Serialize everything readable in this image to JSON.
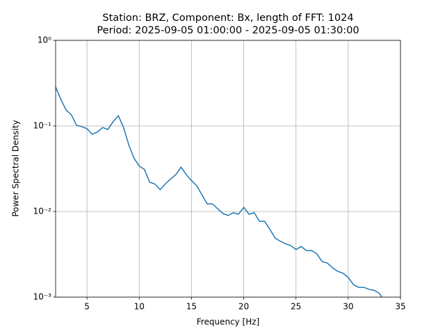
{
  "chart_data": {
    "type": "line",
    "title": [
      "Station: BRZ, Component: Bx, length of FFT: 1024",
      "Period: 2025-09-05 01:00:00 - 2025-09-05 01:30:00"
    ],
    "xlabel": "Frequency [Hz]",
    "ylabel": "Power Spectral Density",
    "x": [
      2,
      2.5,
      3,
      3.5,
      4,
      4.5,
      5,
      5.5,
      6,
      6.5,
      7,
      7.5,
      8,
      8.5,
      9,
      9.5,
      10,
      10.5,
      11,
      11.5,
      12,
      12.5,
      13,
      13.5,
      14,
      14.5,
      15,
      15.5,
      16,
      16.5,
      17,
      17.5,
      18,
      18.5,
      19,
      19.5,
      20,
      20.5,
      21,
      21.5,
      22,
      22.5,
      23,
      23.5,
      24,
      24.5,
      25,
      25.5,
      26,
      26.5,
      27,
      27.5,
      28,
      28.5,
      29,
      29.5,
      30,
      30.5,
      31,
      31.5,
      32,
      32.5,
      33,
      33.2
    ],
    "values": [
      0.285,
      0.204,
      0.154,
      0.135,
      0.102,
      0.098,
      0.093,
      0.08,
      0.085,
      0.096,
      0.091,
      0.112,
      0.132,
      0.096,
      0.06,
      0.042,
      0.034,
      0.031,
      0.022,
      0.021,
      0.018,
      0.021,
      0.024,
      0.027,
      0.033,
      0.027,
      0.023,
      0.02,
      0.0157,
      0.0123,
      0.0123,
      0.0108,
      0.0095,
      0.009,
      0.0097,
      0.0093,
      0.0112,
      0.0093,
      0.0097,
      0.0077,
      0.0077,
      0.0062,
      0.0049,
      0.0045,
      0.0042,
      0.004,
      0.0036,
      0.0039,
      0.0035,
      0.0035,
      0.0032,
      0.0026,
      0.0025,
      0.0022,
      0.002,
      0.0019,
      0.0017,
      0.0014,
      0.0013,
      0.0013,
      0.00123,
      0.0012,
      0.0011,
      0.001
    ],
    "color": "#1f77b4",
    "xlim": [
      2,
      35
    ],
    "xticks": [
      5,
      10,
      15,
      20,
      25,
      30,
      35
    ],
    "ylim": [
      0.001,
      1
    ],
    "ylog": true,
    "yticks": [
      {
        "value": 0.001,
        "label": "10⁻³"
      },
      {
        "value": 0.01,
        "label": "10⁻²"
      },
      {
        "value": 0.1,
        "label": "10⁻¹"
      },
      {
        "value": 1,
        "label": "10⁰"
      }
    ],
    "grid": true
  }
}
